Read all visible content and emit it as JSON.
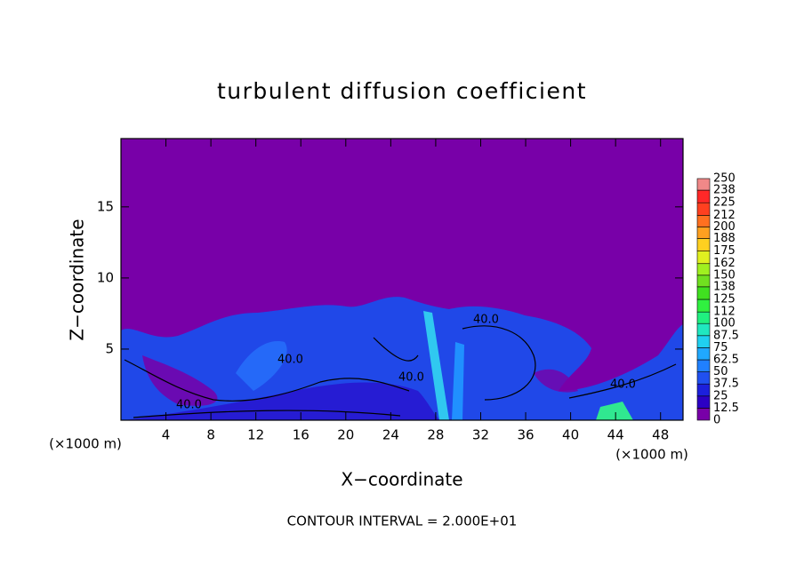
{
  "chart_data": {
    "type": "contour",
    "title": "turbulent diffusion coefficient",
    "xlabel": "X−coordinate",
    "ylabel": "Z−coordinate",
    "x_unit_label": "(×1000 m)",
    "y_unit_label": "(×1000 m)",
    "footnote": "CONTOUR INTERVAL = 2.000E+01",
    "xlim": [
      0,
      50
    ],
    "ylim": [
      0,
      19.8
    ],
    "xticks": [
      4,
      8,
      12,
      16,
      20,
      24,
      28,
      32,
      36,
      40,
      44,
      48
    ],
    "yticks": [
      5,
      10,
      15
    ],
    "contour_labels": [
      "40.0",
      "40.0",
      "40.0",
      "40.0",
      "40.0"
    ],
    "colorbar": {
      "levels": [
        0,
        12.5,
        25,
        37.5,
        50,
        62.5,
        75,
        87.5,
        100,
        112,
        125,
        138,
        150,
        162,
        175,
        188,
        200,
        212,
        225,
        238,
        250
      ],
      "colors": [
        "#7800a8",
        "#2c00c4",
        "#1c20dc",
        "#2050f0",
        "#2080ff",
        "#20a8ff",
        "#20d0f0",
        "#20e8c0",
        "#20f080",
        "#30f040",
        "#40e020",
        "#70e020",
        "#a0f020",
        "#e0f020",
        "#ffd020",
        "#ffa020",
        "#ff7020",
        "#ff4020",
        "#ff2828",
        "#f08888"
      ]
    }
  }
}
